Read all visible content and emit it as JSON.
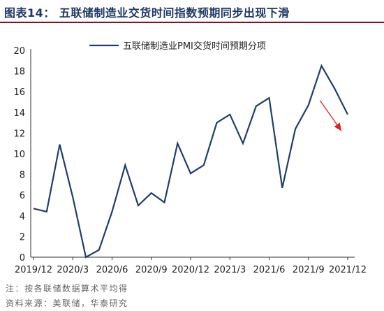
{
  "header": {
    "title": "图表14：   五联储制造业交货时间指数预期同步出现下滑"
  },
  "chart_data": {
    "type": "line",
    "series": [
      {
        "name": "五联储制造业PMI交货时间预期分项",
        "color": "#1f3d6e",
        "values": [
          4.7,
          4.4,
          10.9,
          5.8,
          0.0,
          0.7,
          4.4,
          8.9,
          5.0,
          6.2,
          5.3,
          11.0,
          8.1,
          8.9,
          13.0,
          13.8,
          11.0,
          14.6,
          15.4,
          6.7,
          12.4,
          14.7,
          18.5,
          16.3,
          13.8
        ]
      }
    ],
    "x": [
      "2019/12",
      "2020/1",
      "2020/2",
      "2020/3",
      "2020/4",
      "2020/5",
      "2020/6",
      "2020/7",
      "2020/8",
      "2020/9",
      "2020/10",
      "2020/11",
      "2020/12",
      "2021/1",
      "2021/2",
      "2021/3",
      "2021/4",
      "2021/5",
      "2021/6",
      "2021/7",
      "2021/8",
      "2021/9",
      "2021/10",
      "2021/11",
      "2021/12"
    ],
    "x_tick_labels": [
      "2019/12",
      "2020/3",
      "2020/6",
      "2020/9",
      "2020/12",
      "2021/3",
      "2021/6",
      "2021/9",
      "2021/12"
    ],
    "yticks": [
      0,
      2,
      4,
      6,
      8,
      10,
      12,
      14,
      16,
      18,
      20
    ],
    "ylim": [
      0,
      20
    ],
    "grid": false,
    "legend_position": "top",
    "annotation": {
      "type": "arrow",
      "color": "#e02020",
      "from": [
        "2021/10",
        15.0
      ],
      "to": [
        "2021/12",
        12.0
      ]
    }
  },
  "footnotes": {
    "note": "注：按各联储数据算术平均得",
    "source": "资料来源：美联储，华泰研究"
  }
}
